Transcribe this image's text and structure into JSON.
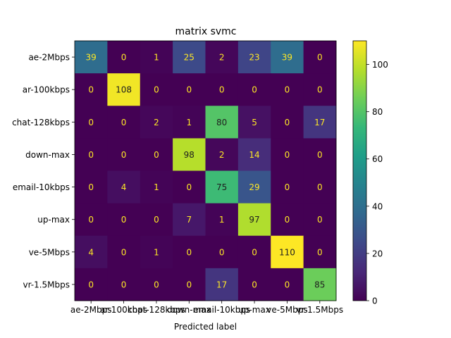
{
  "chart_data": {
    "type": "heatmap",
    "title": "matrix svmc",
    "xlabel": "Predicted label",
    "ylabel": "",
    "x_categories": [
      "ae-2Mbps",
      "ar-100kbps",
      "chat-128kbps",
      "down-max",
      "email-10kbps",
      "up-max",
      "ve-5Mbps",
      "vr-1.5Mbps"
    ],
    "y_categories": [
      "ae-2Mbps",
      "ar-100kbps",
      "chat-128kbps",
      "down-max",
      "email-10kbps",
      "up-max",
      "ve-5Mbps",
      "vr-1.5Mbps"
    ],
    "values": [
      [
        39,
        0,
        1,
        25,
        2,
        23,
        39,
        0
      ],
      [
        0,
        108,
        0,
        0,
        0,
        0,
        0,
        0
      ],
      [
        0,
        0,
        2,
        1,
        80,
        5,
        0,
        17
      ],
      [
        0,
        0,
        0,
        98,
        2,
        14,
        0,
        0
      ],
      [
        0,
        4,
        1,
        0,
        75,
        29,
        0,
        0
      ],
      [
        0,
        0,
        0,
        7,
        1,
        97,
        0,
        0
      ],
      [
        4,
        0,
        1,
        0,
        0,
        0,
        110,
        0
      ],
      [
        0,
        0,
        0,
        0,
        17,
        0,
        0,
        85
      ]
    ],
    "colormap": "viridis",
    "vmin": 0,
    "vmax": 110,
    "colorbar_ticks": [
      "0",
      "20",
      "40",
      "60",
      "80",
      "100"
    ]
  }
}
